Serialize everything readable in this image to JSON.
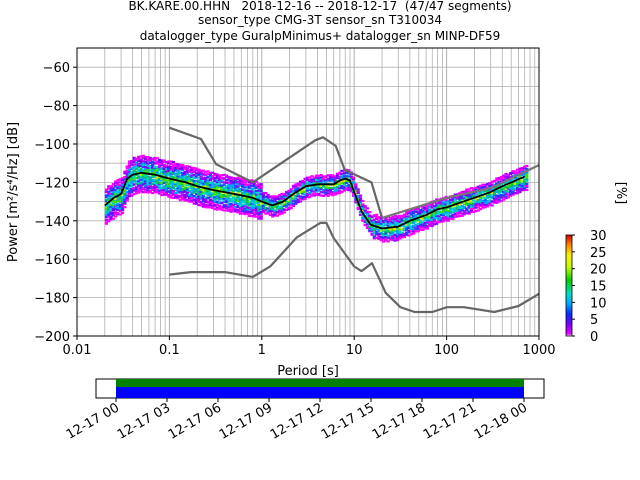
{
  "title": {
    "line1": "BK.KARE.00.HHN   2018-12-16 -- 2018-12-17  (47/47 segments)",
    "line2": "sensor_type CMG-3T sensor_sn T310034",
    "line3": "datalogger_type GuralpMinimus+ datalogger_sn MINP-DF59"
  },
  "chart_data": {
    "type": "heatmap",
    "xlabel": "Period [s]",
    "ylabel": "Power [m²/s⁴/Hz] [dB]",
    "xscale": "log",
    "xlim": [
      0.01,
      1000
    ],
    "ylim": [
      -200,
      -50
    ],
    "x_ticks": [
      "0.01",
      "0.1",
      "1",
      "10",
      "100",
      "1000"
    ],
    "y_ticks": [
      "-200",
      "-180",
      "-160",
      "-140",
      "-120",
      "-100",
      "-80",
      "-60"
    ],
    "grid": true,
    "mean_curve": {
      "period": [
        0.02,
        0.025,
        0.03,
        0.035,
        0.04,
        0.05,
        0.07,
        0.1,
        0.15,
        0.2,
        0.3,
        0.5,
        0.8,
        1.0,
        1.3,
        1.7,
        2.2,
        3.0,
        4.0,
        5.0,
        6.0,
        7.0,
        8.0,
        9.0,
        10,
        12,
        15,
        20,
        30,
        40,
        60,
        80,
        100,
        150,
        200,
        300,
        400,
        500,
        700
      ],
      "power": [
        -132,
        -128,
        -126,
        -118,
        -116,
        -115,
        -116,
        -118,
        -120,
        -122,
        -124,
        -126,
        -128,
        -130,
        -132,
        -130,
        -126,
        -122,
        -121,
        -121,
        -121,
        -119,
        -118,
        -119,
        -125,
        -135,
        -142,
        -144,
        -143,
        -140,
        -137,
        -134,
        -133,
        -130,
        -128,
        -125,
        -122,
        -120,
        -117
      ]
    },
    "nhnm": {
      "period": [
        0.1,
        0.22,
        0.32,
        0.8,
        3.8,
        4.6,
        6.3,
        7.9,
        15.4,
        20
      ],
      "power": [
        -91.5,
        -97.4,
        -110.5,
        -120,
        -98,
        -96.5,
        -101,
        -113.5,
        -120,
        -138.5
      ]
    },
    "nhnm_long": {
      "period": [
        20,
        100,
        300,
        1000
      ],
      "power": [
        -138.5,
        -128,
        -123,
        -111
      ]
    },
    "nlnm": {
      "period": [
        0.1,
        0.17,
        0.4,
        0.8,
        1.24,
        2.4,
        4.3,
        5.0,
        6.0,
        10,
        12,
        15.6,
        21.9,
        31.6,
        45,
        70,
        101,
        154,
        328,
        600,
        1000
      ],
      "power": [
        -168,
        -166.7,
        -166.7,
        -169.2,
        -163.7,
        -148.6,
        -141.1,
        -141.1,
        -149,
        -163.8,
        -166.2,
        -162.1,
        -177.5,
        -185,
        -187.5,
        -187.5,
        -185,
        -185,
        -187.5,
        -184.4,
        -178
      ]
    },
    "colorbar": {
      "label": "[%]",
      "ticks": [
        "0",
        "5",
        "10",
        "15",
        "20",
        "25",
        "30"
      ],
      "range": [
        0,
        30
      ]
    },
    "coverage": {
      "tick_labels": [
        "12-17 00",
        "12-17 03",
        "12-17 06",
        "12-17 09",
        "12-17 12",
        "12-17 15",
        "12-17 18",
        "12-17 21",
        "12-18 00"
      ],
      "colors": {
        "data": "#0000ff",
        "gaps_overview": "#008000"
      }
    }
  }
}
